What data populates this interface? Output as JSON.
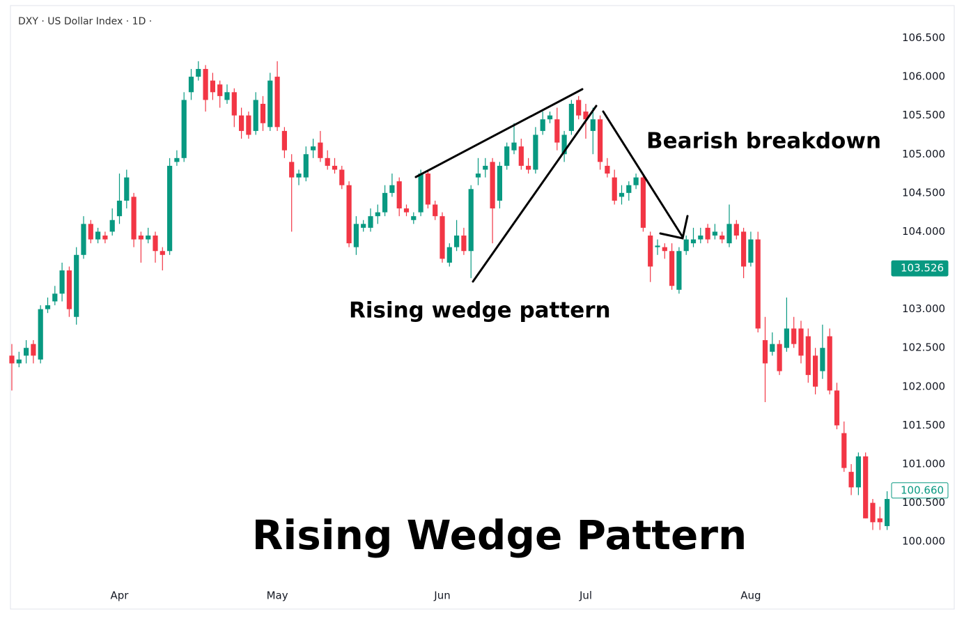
{
  "chart_data": {
    "type": "candlestick",
    "title": "DXY · US Dollar Index · 1D ·",
    "heading": "Rising Wedge Pattern",
    "annotations": [
      "Rising wedge pattern",
      "Bearish breakdown"
    ],
    "up_color": "#089981",
    "down_color": "#f23645",
    "categories": [
      null,
      null,
      null,
      null,
      null,
      null,
      null,
      null,
      null,
      null,
      null,
      null,
      null,
      null,
      null,
      "Apr",
      null,
      null,
      null,
      null,
      null,
      null,
      null,
      null,
      null,
      null,
      null,
      null,
      null,
      null,
      null,
      null,
      null,
      null,
      null,
      null,
      null,
      "May",
      null,
      null,
      null,
      null,
      null,
      null,
      null,
      null,
      null,
      null,
      null,
      null,
      null,
      null,
      null,
      null,
      null,
      null,
      null,
      null,
      null,
      null,
      "Jun",
      null,
      null,
      null,
      null,
      null,
      null,
      null,
      null,
      null,
      null,
      null,
      null,
      null,
      null,
      null,
      null,
      null,
      null,
      null,
      "Jul",
      null,
      null,
      null,
      null,
      null,
      null,
      null,
      null,
      null,
      null,
      null,
      null,
      null,
      null,
      null,
      null,
      null,
      null,
      null,
      null,
      null,
      null,
      "Aug",
      null,
      null,
      null,
      null,
      null,
      null,
      null,
      null,
      null,
      null,
      null,
      null,
      null,
      null,
      null,
      null,
      null,
      null,
      null
    ],
    "open": [
      102.4,
      102.3,
      102.4,
      102.55,
      102.35,
      103.0,
      103.1,
      103.2,
      103.5,
      102.9,
      103.7,
      104.1,
      103.9,
      103.95,
      104.0,
      104.2,
      104.4,
      104.45,
      103.95,
      103.9,
      103.95,
      103.75,
      103.75,
      104.9,
      104.95,
      105.8,
      106.0,
      106.1,
      105.95,
      105.9,
      105.7,
      105.8,
      105.5,
      105.5,
      105.3,
      105.65,
      105.35,
      106.0,
      105.3,
      104.9,
      104.7,
      104.7,
      105.05,
      105.15,
      104.95,
      104.85,
      104.8,
      104.6,
      103.8,
      104.05,
      104.05,
      104.2,
      104.25,
      104.5,
      104.65,
      104.3,
      104.15,
      104.25,
      104.75,
      104.35,
      104.2,
      103.6,
      103.8,
      103.95,
      103.75,
      104.7,
      104.8,
      104.9,
      104.4,
      104.85,
      105.05,
      105.1,
      104.85,
      104.8,
      105.3,
      105.45,
      105.45,
      105.0,
      105.3,
      105.7,
      105.55,
      105.3,
      105.45,
      104.85,
      104.7,
      104.45,
      104.5,
      104.6,
      104.7,
      103.95,
      103.8,
      103.8,
      103.75,
      103.25,
      103.75,
      103.85,
      103.9,
      104.05,
      103.95,
      103.95,
      103.85,
      104.1,
      104.0,
      103.6,
      103.9,
      102.6,
      102.45,
      102.55,
      102.5,
      102.75,
      102.75,
      102.65,
      102.4,
      102.2,
      102.65,
      101.95,
      101.4,
      100.9,
      100.7,
      101.1,
      100.5,
      100.3,
      100.2
    ],
    "high": [
      102.55,
      102.45,
      102.6,
      102.6,
      103.05,
      103.15,
      103.3,
      103.6,
      103.55,
      103.8,
      104.2,
      104.15,
      104.05,
      104.0,
      104.3,
      104.75,
      104.8,
      104.5,
      104.0,
      104.05,
      104.0,
      103.8,
      104.95,
      105.05,
      105.8,
      106.1,
      106.2,
      106.15,
      106.05,
      105.95,
      105.9,
      105.85,
      105.6,
      105.55,
      105.8,
      105.75,
      106.05,
      106.2,
      105.35,
      105.0,
      104.8,
      105.1,
      105.2,
      105.3,
      105.05,
      104.95,
      104.85,
      104.65,
      104.2,
      104.15,
      104.3,
      104.35,
      104.6,
      104.75,
      104.7,
      104.35,
      104.25,
      104.8,
      104.8,
      104.4,
      104.25,
      103.85,
      104.15,
      104.05,
      104.6,
      104.95,
      104.95,
      104.95,
      104.9,
      105.15,
      105.4,
      105.2,
      104.95,
      105.35,
      105.55,
      105.55,
      105.6,
      105.3,
      105.7,
      105.75,
      105.65,
      105.6,
      105.5,
      104.95,
      104.8,
      104.6,
      104.65,
      104.75,
      104.75,
      104.0,
      103.9,
      103.85,
      103.85,
      103.8,
      103.95,
      104.05,
      104.05,
      104.1,
      104.1,
      104.0,
      104.35,
      104.15,
      104.05,
      104.0,
      104.0,
      102.9,
      102.7,
      102.6,
      103.15,
      102.9,
      102.85,
      102.75,
      102.5,
      102.8,
      102.75,
      102.05,
      101.55,
      101.0,
      101.15,
      101.15,
      100.55,
      100.45,
      100.65
    ],
    "low": [
      101.95,
      102.25,
      102.3,
      102.3,
      102.3,
      102.95,
      103.05,
      103.1,
      102.9,
      102.8,
      103.65,
      103.85,
      103.85,
      103.85,
      103.95,
      104.1,
      104.3,
      103.8,
      103.6,
      103.85,
      103.6,
      103.5,
      103.7,
      104.85,
      104.9,
      105.7,
      105.95,
      105.55,
      105.7,
      105.6,
      105.65,
      105.35,
      105.2,
      105.2,
      105.25,
      105.3,
      105.3,
      105.3,
      104.95,
      104.0,
      104.6,
      104.65,
      104.95,
      104.9,
      104.8,
      104.75,
      104.55,
      103.8,
      103.7,
      104.0,
      104.0,
      104.1,
      104.2,
      104.45,
      104.2,
      104.2,
      104.1,
      104.2,
      104.3,
      104.15,
      103.6,
      103.55,
      103.75,
      103.7,
      103.4,
      104.6,
      104.7,
      103.85,
      104.3,
      104.8,
      105.0,
      104.8,
      104.75,
      104.75,
      105.25,
      105.4,
      105.05,
      104.9,
      105.25,
      105.45,
      105.2,
      105.0,
      104.8,
      104.7,
      104.35,
      104.35,
      104.4,
      104.55,
      104.0,
      103.35,
      103.7,
      103.65,
      103.25,
      103.2,
      103.7,
      103.8,
      103.85,
      103.85,
      103.9,
      103.85,
      103.8,
      103.9,
      103.4,
      103.55,
      102.7,
      101.8,
      102.4,
      102.15,
      102.45,
      102.5,
      102.3,
      102.05,
      101.9,
      102.1,
      101.9,
      101.45,
      100.9,
      100.6,
      100.6,
      100.3,
      100.15,
      100.15,
      100.15
    ],
    "close": [
      102.3,
      102.35,
      102.5,
      102.4,
      103.0,
      103.05,
      103.2,
      103.5,
      103.0,
      103.7,
      104.1,
      103.9,
      104.0,
      103.9,
      104.15,
      104.4,
      104.7,
      103.9,
      103.9,
      103.95,
      103.75,
      103.7,
      104.85,
      104.95,
      105.7,
      106.0,
      106.1,
      105.7,
      105.8,
      105.75,
      105.8,
      105.5,
      105.3,
      105.25,
      105.7,
      105.4,
      105.95,
      105.35,
      105.05,
      104.7,
      104.75,
      105.0,
      105.1,
      104.95,
      104.85,
      104.8,
      104.6,
      103.85,
      104.1,
      104.1,
      104.2,
      104.25,
      104.5,
      104.6,
      104.3,
      104.25,
      104.2,
      104.75,
      104.35,
      104.2,
      103.65,
      103.8,
      103.95,
      103.75,
      104.55,
      104.75,
      104.85,
      104.3,
      104.85,
      105.1,
      105.15,
      104.85,
      104.8,
      105.25,
      105.45,
      105.5,
      105.15,
      105.25,
      105.65,
      105.5,
      105.45,
      105.45,
      104.9,
      104.75,
      104.4,
      104.5,
      104.6,
      104.7,
      104.05,
      103.55,
      103.82,
      103.75,
      103.3,
      103.75,
      103.9,
      103.9,
      103.95,
      103.9,
      104.0,
      103.9,
      104.1,
      103.95,
      103.55,
      103.9,
      102.75,
      102.3,
      102.55,
      102.2,
      102.75,
      102.55,
      102.4,
      102.15,
      102.0,
      102.5,
      101.95,
      101.5,
      100.95,
      100.7,
      101.1,
      100.3,
      100.25,
      100.25,
      100.55
    ],
    "ylim": [
      99.48,
      106.9
    ],
    "yticks": [
      {
        "value": 100.0,
        "label": "100.000"
      },
      {
        "value": 100.5,
        "label": "100.500"
      },
      {
        "value": 101.0,
        "label": "101.000"
      },
      {
        "value": 101.5,
        "label": "101.500"
      },
      {
        "value": 102.0,
        "label": "102.000"
      },
      {
        "value": 102.5,
        "label": "102.500"
      },
      {
        "value": 103.0,
        "label": "103.000"
      },
      {
        "value": 103.5,
        "label": "103.500"
      },
      {
        "value": 104.0,
        "label": "104.000"
      },
      {
        "value": 104.5,
        "label": "104.500"
      },
      {
        "value": 105.0,
        "label": "105.000"
      },
      {
        "value": 105.5,
        "label": "105.500"
      },
      {
        "value": 106.0,
        "label": "106.000"
      },
      {
        "value": 106.5,
        "label": "106.500"
      }
    ],
    "price_labels": [
      {
        "value": 103.526,
        "label": "103.526",
        "style": "filled"
      },
      {
        "value": 100.66,
        "label": "100.660",
        "style": "outlined"
      }
    ],
    "grid": false
  }
}
